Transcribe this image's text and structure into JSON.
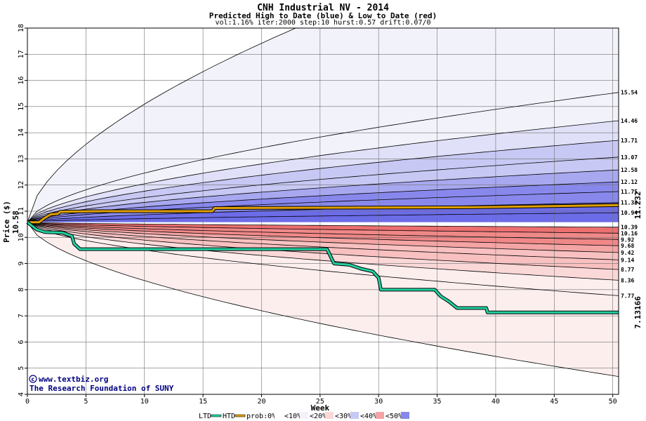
{
  "chart_data": {
    "type": "line",
    "title": "CNH Industrial NV - 2014",
    "subtitle": "Predicted High to Date (blue) &  Low to Date (red)",
    "params": "vol:1.16% iter:2000 step:10 hurst:0.57 drift:0.07/0",
    "xlabel": "Week",
    "ylabel": "Price ($)",
    "xlim": [
      0,
      50.5
    ],
    "ylim": [
      4,
      18
    ],
    "xticks": [
      0,
      5,
      10,
      15,
      20,
      25,
      30,
      35,
      40,
      45,
      50
    ],
    "yticks": [
      4,
      5,
      6,
      7,
      8,
      9,
      10,
      11,
      12,
      13,
      14,
      15,
      16,
      17,
      18
    ],
    "grid": true,
    "start_price_label": "10.58",
    "start_price": 10.58,
    "right_labels": [
      "15.54",
      "14.46",
      "13.71",
      "13.07",
      "12.58",
      "12.12",
      "11.75",
      "11.33",
      "10.94",
      "10.39",
      "10.16",
      "9.92",
      "9.68",
      "9.42",
      "9.14",
      "8.77",
      "8.36",
      "7.77"
    ],
    "right_values": [
      15.54,
      14.46,
      13.71,
      13.07,
      12.58,
      12.12,
      11.75,
      11.33,
      10.94,
      10.39,
      10.16,
      9.92,
      9.68,
      9.42,
      9.14,
      8.77,
      8.36,
      7.77
    ],
    "outer_upper_end": 22.5,
    "outer_lower_end": 4.68,
    "htd_end_label": "11.232",
    "ltd_end_label": "7.13166",
    "band_colors": [
      "#f2f2fb",
      "#e0e0f8",
      "#c8c8f4",
      "#a8a8f0",
      "#8888ec",
      "#6c6ce8"
    ],
    "red_band_colors": [
      "#fdeeee",
      "#fbd8d8",
      "#f8c0c0",
      "#f4a4a4",
      "#f08888",
      "#ec7070"
    ],
    "htd_series": {
      "name": "HTD",
      "color": "#e0a000",
      "points": [
        [
          0,
          10.58
        ],
        [
          1.0,
          10.58
        ],
        [
          1.5,
          10.75
        ],
        [
          2.0,
          10.88
        ],
        [
          2.6,
          10.9
        ],
        [
          2.8,
          10.98
        ],
        [
          6,
          11.0
        ],
        [
          15.8,
          11.0
        ],
        [
          16,
          11.12
        ],
        [
          38,
          11.15
        ],
        [
          50.5,
          11.23
        ]
      ]
    },
    "ltd_series": {
      "name": "LTD",
      "color": "#20d0a0",
      "points": [
        [
          0,
          10.58
        ],
        [
          0.8,
          10.3
        ],
        [
          1.5,
          10.2
        ],
        [
          3.0,
          10.18
        ],
        [
          3.8,
          10.05
        ],
        [
          4.0,
          9.75
        ],
        [
          4.5,
          9.55
        ],
        [
          25.6,
          9.55
        ],
        [
          26.2,
          9.0
        ],
        [
          27.5,
          8.95
        ],
        [
          28.5,
          8.8
        ],
        [
          29.5,
          8.7
        ],
        [
          30.0,
          8.45
        ],
        [
          30.2,
          8.0
        ],
        [
          34.8,
          8.0
        ],
        [
          35.3,
          7.75
        ],
        [
          36.0,
          7.55
        ],
        [
          36.7,
          7.3
        ],
        [
          39.2,
          7.3
        ],
        [
          39.3,
          7.13
        ],
        [
          50.5,
          7.13
        ]
      ]
    },
    "credits": {
      "line1": "www.textbiz.org",
      "line2": "The Research Foundation of SUNY"
    },
    "legend": {
      "ltd": "LTD",
      "htd": "HTD",
      "prob": "prob:",
      "items": [
        "0%",
        "<10%",
        "<20%",
        "<30%",
        "<40%",
        "<50%"
      ],
      "colors": [
        "#ffffff",
        "#f2f2fb",
        "#fbd8d8",
        "#c8c8f4",
        "#f4a4a4",
        "#8888ec"
      ]
    }
  }
}
